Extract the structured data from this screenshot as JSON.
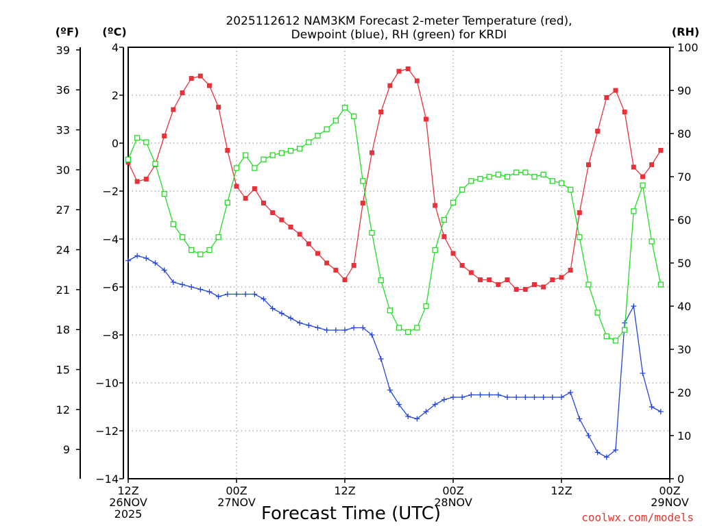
{
  "chart_data": {
    "type": "line",
    "title_line1": "2025112612 NAM3KM Forecast 2-meter Temperature (red),",
    "title_line2": "Dewpoint (blue), RH (green) for KRDI",
    "xlabel": "Forecast Time (UTC)",
    "credit": "coolwx.com/models",
    "units": {
      "fahrenheit": "(ºF)",
      "celsius": "(ºC)",
      "rh": "(RH)"
    },
    "x_range": [
      0,
      60
    ],
    "x_step_hours": 1,
    "x_ticks": [
      {
        "hour": 0,
        "lines": [
          "12Z",
          "26NOV",
          "2025"
        ]
      },
      {
        "hour": 12,
        "lines": [
          "00Z",
          "27NOV"
        ]
      },
      {
        "hour": 24,
        "lines": [
          "12Z"
        ]
      },
      {
        "hour": 36,
        "lines": [
          "00Z",
          "28NOV"
        ]
      },
      {
        "hour": 48,
        "lines": [
          "12Z"
        ]
      },
      {
        "hour": 60,
        "lines": [
          "00Z",
          "29NOV"
        ]
      }
    ],
    "celsius_axis": {
      "range": [
        -14,
        4
      ],
      "ticks": [
        "4",
        "2",
        "0",
        "−2",
        "−4",
        "−6",
        "−8",
        "−10",
        "−12",
        "−14"
      ],
      "values": [
        4,
        2,
        0,
        -2,
        -4,
        -6,
        -8,
        -10,
        -12,
        -14
      ]
    },
    "fahrenheit_axis": {
      "ticks": [
        "39",
        "36",
        "33",
        "30",
        "27",
        "24",
        "21",
        "18",
        "15",
        "12",
        "9"
      ],
      "values": [
        39,
        36,
        33,
        30,
        27,
        24,
        21,
        18,
        15,
        12,
        9
      ]
    },
    "rh_axis": {
      "range": [
        0,
        100
      ],
      "ticks": [
        "100",
        "90",
        "80",
        "70",
        "60",
        "50",
        "40",
        "30",
        "20",
        "10",
        "0"
      ],
      "values": [
        100,
        90,
        80,
        70,
        60,
        50,
        40,
        30,
        20,
        10,
        0
      ]
    },
    "series": [
      {
        "name": "2-meter Temperature",
        "axis": "celsius",
        "color": "#e8323a",
        "marker": "filled-square",
        "values": [
          -0.8,
          -1.6,
          -1.5,
          -0.9,
          0.3,
          1.4,
          2.1,
          2.7,
          2.8,
          2.4,
          1.5,
          -0.3,
          -1.8,
          -2.3,
          -1.9,
          -2.5,
          -2.9,
          -3.2,
          -3.5,
          -3.8,
          -4.2,
          -4.6,
          -5.0,
          -5.3,
          -5.7,
          -5.1,
          -2.5,
          -0.4,
          1.3,
          2.4,
          3.0,
          3.1,
          2.6,
          1.0,
          -2.6,
          -3.9,
          -4.6,
          -5.1,
          -5.4,
          -5.7,
          -5.7,
          -5.9,
          -5.7,
          -6.1,
          -6.1,
          -5.9,
          -6.0,
          -5.7,
          -5.6,
          -5.3,
          -2.9,
          -0.9,
          0.5,
          1.9,
          2.2,
          1.3,
          -1.0,
          -1.4,
          -0.9,
          -0.3
        ]
      },
      {
        "name": "Dewpoint",
        "axis": "celsius",
        "color": "#2244dd",
        "marker": "plus",
        "values": [
          -4.9,
          -4.7,
          -4.8,
          -5.0,
          -5.3,
          -5.8,
          -5.9,
          -6.0,
          -6.1,
          -6.2,
          -6.4,
          -6.3,
          -6.3,
          -6.3,
          -6.3,
          -6.5,
          -6.9,
          -7.1,
          -7.3,
          -7.5,
          -7.6,
          -7.7,
          -7.8,
          -7.8,
          -7.8,
          -7.7,
          -7.7,
          -8.0,
          -9.0,
          -10.3,
          -10.9,
          -11.4,
          -11.5,
          -11.2,
          -10.9,
          -10.7,
          -10.6,
          -10.6,
          -10.5,
          -10.5,
          -10.5,
          -10.5,
          -10.6,
          -10.6,
          -10.6,
          -10.6,
          -10.6,
          -10.6,
          -10.6,
          -10.4,
          -11.5,
          -12.2,
          -12.9,
          -13.1,
          -12.8,
          -7.5,
          -6.8,
          -9.6,
          -11.0,
          -11.2
        ]
      },
      {
        "name": "RH",
        "axis": "rh",
        "color": "#22dd22",
        "marker": "open-square",
        "values": [
          74,
          79,
          78,
          73,
          66,
          59,
          56,
          53,
          52,
          53,
          56,
          64,
          72,
          75,
          72,
          74,
          75,
          75.5,
          76,
          76.5,
          78,
          79.5,
          81,
          83,
          86,
          84,
          69,
          57,
          46,
          39,
          35,
          34,
          35,
          40,
          53,
          60,
          64,
          67,
          69,
          69.5,
          70,
          70.5,
          70,
          71,
          71,
          70,
          70.5,
          69,
          68.5,
          67,
          56,
          45,
          38.5,
          33,
          32,
          34.5,
          62,
          68,
          55,
          45
        ]
      }
    ]
  }
}
